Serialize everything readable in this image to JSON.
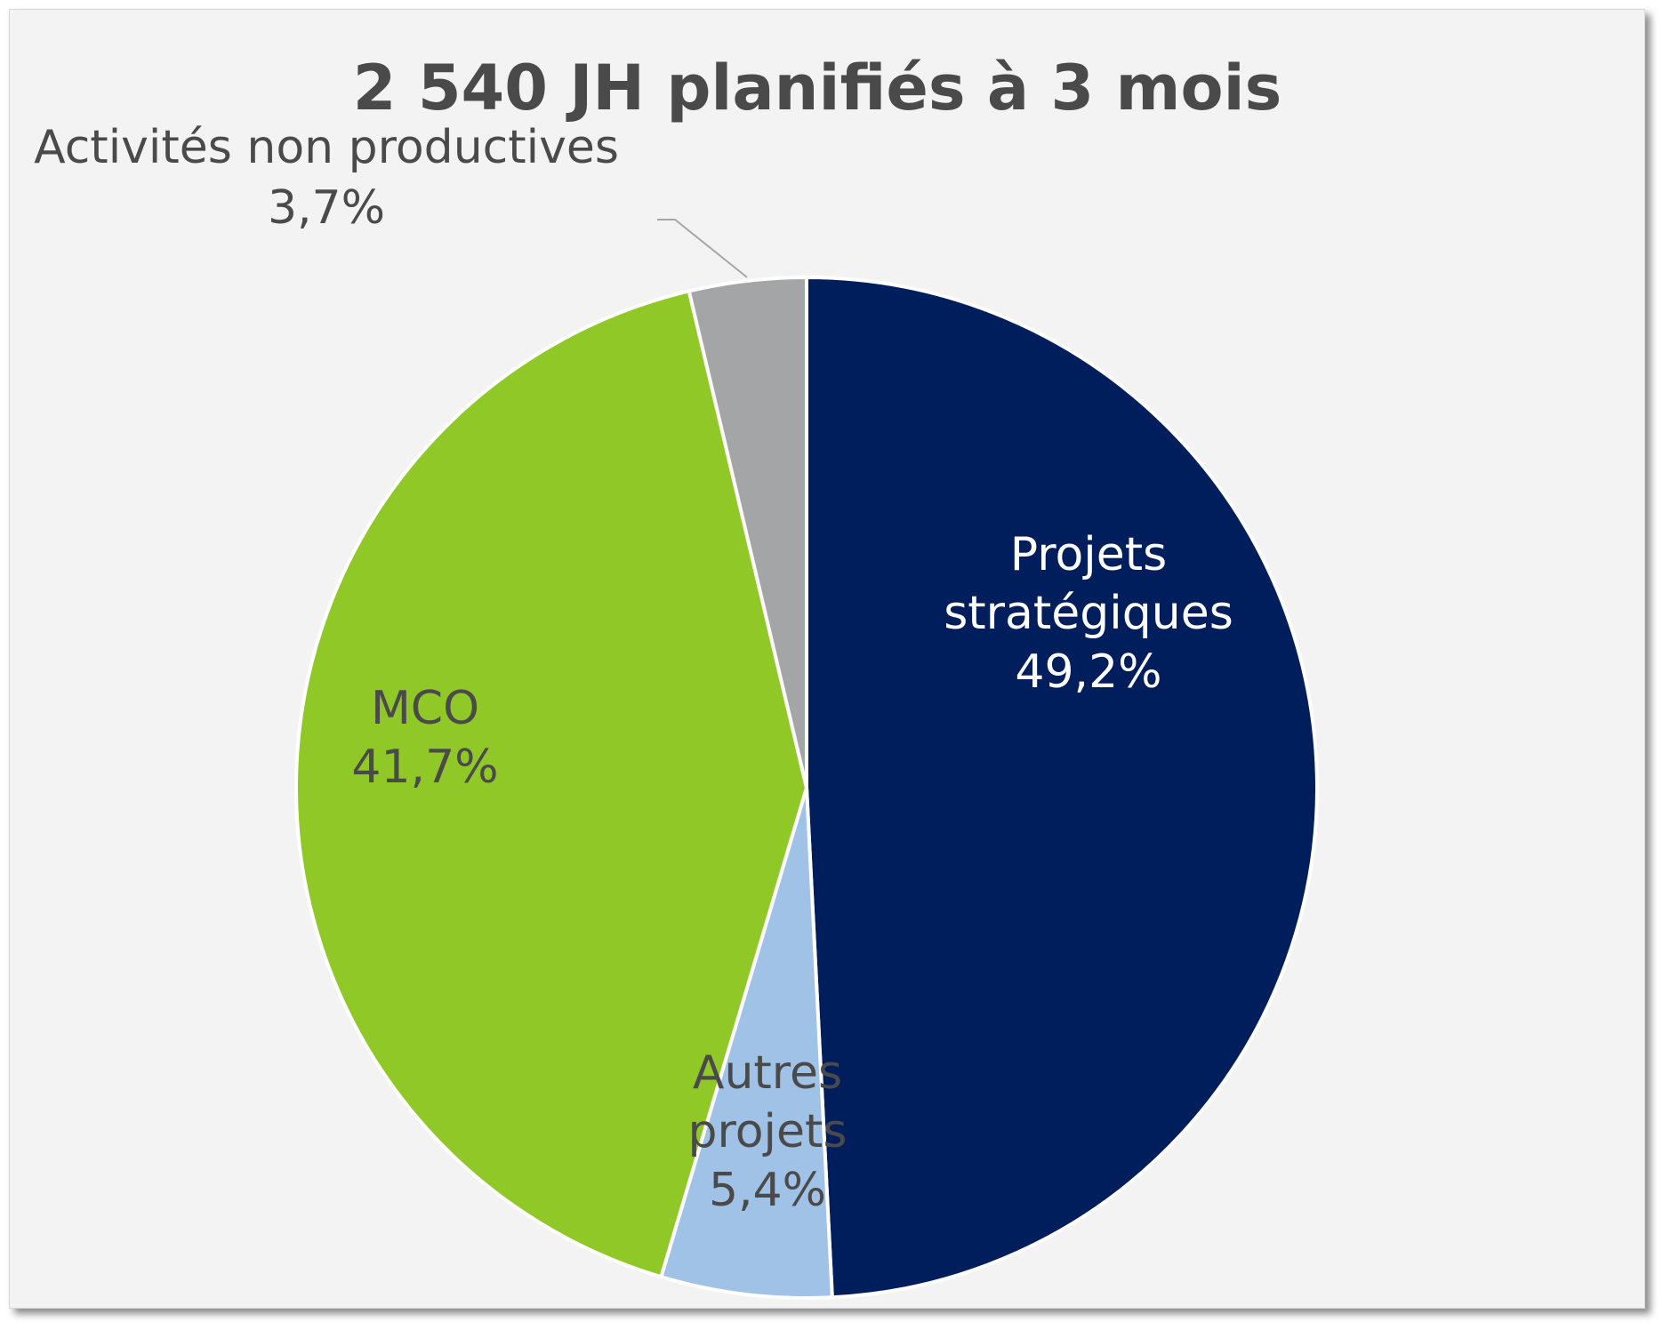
{
  "chart_data": {
    "type": "pie",
    "title": "2 540 JH planifiés à 3 mois",
    "slices": [
      {
        "label_lines": [
          "Projets",
          "stratégiques"
        ],
        "value": 49.2,
        "value_label": "49,2%",
        "color": "#001e5c",
        "label_color": "#ffffff"
      },
      {
        "label_lines": [
          "Autres",
          "projets"
        ],
        "value": 5.4,
        "value_label": "5,4%",
        "color": "#a0c2e6",
        "label_color": "#4a4a4a"
      },
      {
        "label_lines": [
          "MCO"
        ],
        "value": 41.7,
        "value_label": "41,7%",
        "color": "#90c828",
        "label_color": "#4a4a4a"
      },
      {
        "label_lines": [
          "Activités non productives"
        ],
        "value": 3.7,
        "value_label": "3,7%",
        "color": "#a4a5a7",
        "label_color": "#4a4a4a"
      }
    ],
    "start_angle": "12 o'clock",
    "direction": "clockwise",
    "legend": "none"
  }
}
